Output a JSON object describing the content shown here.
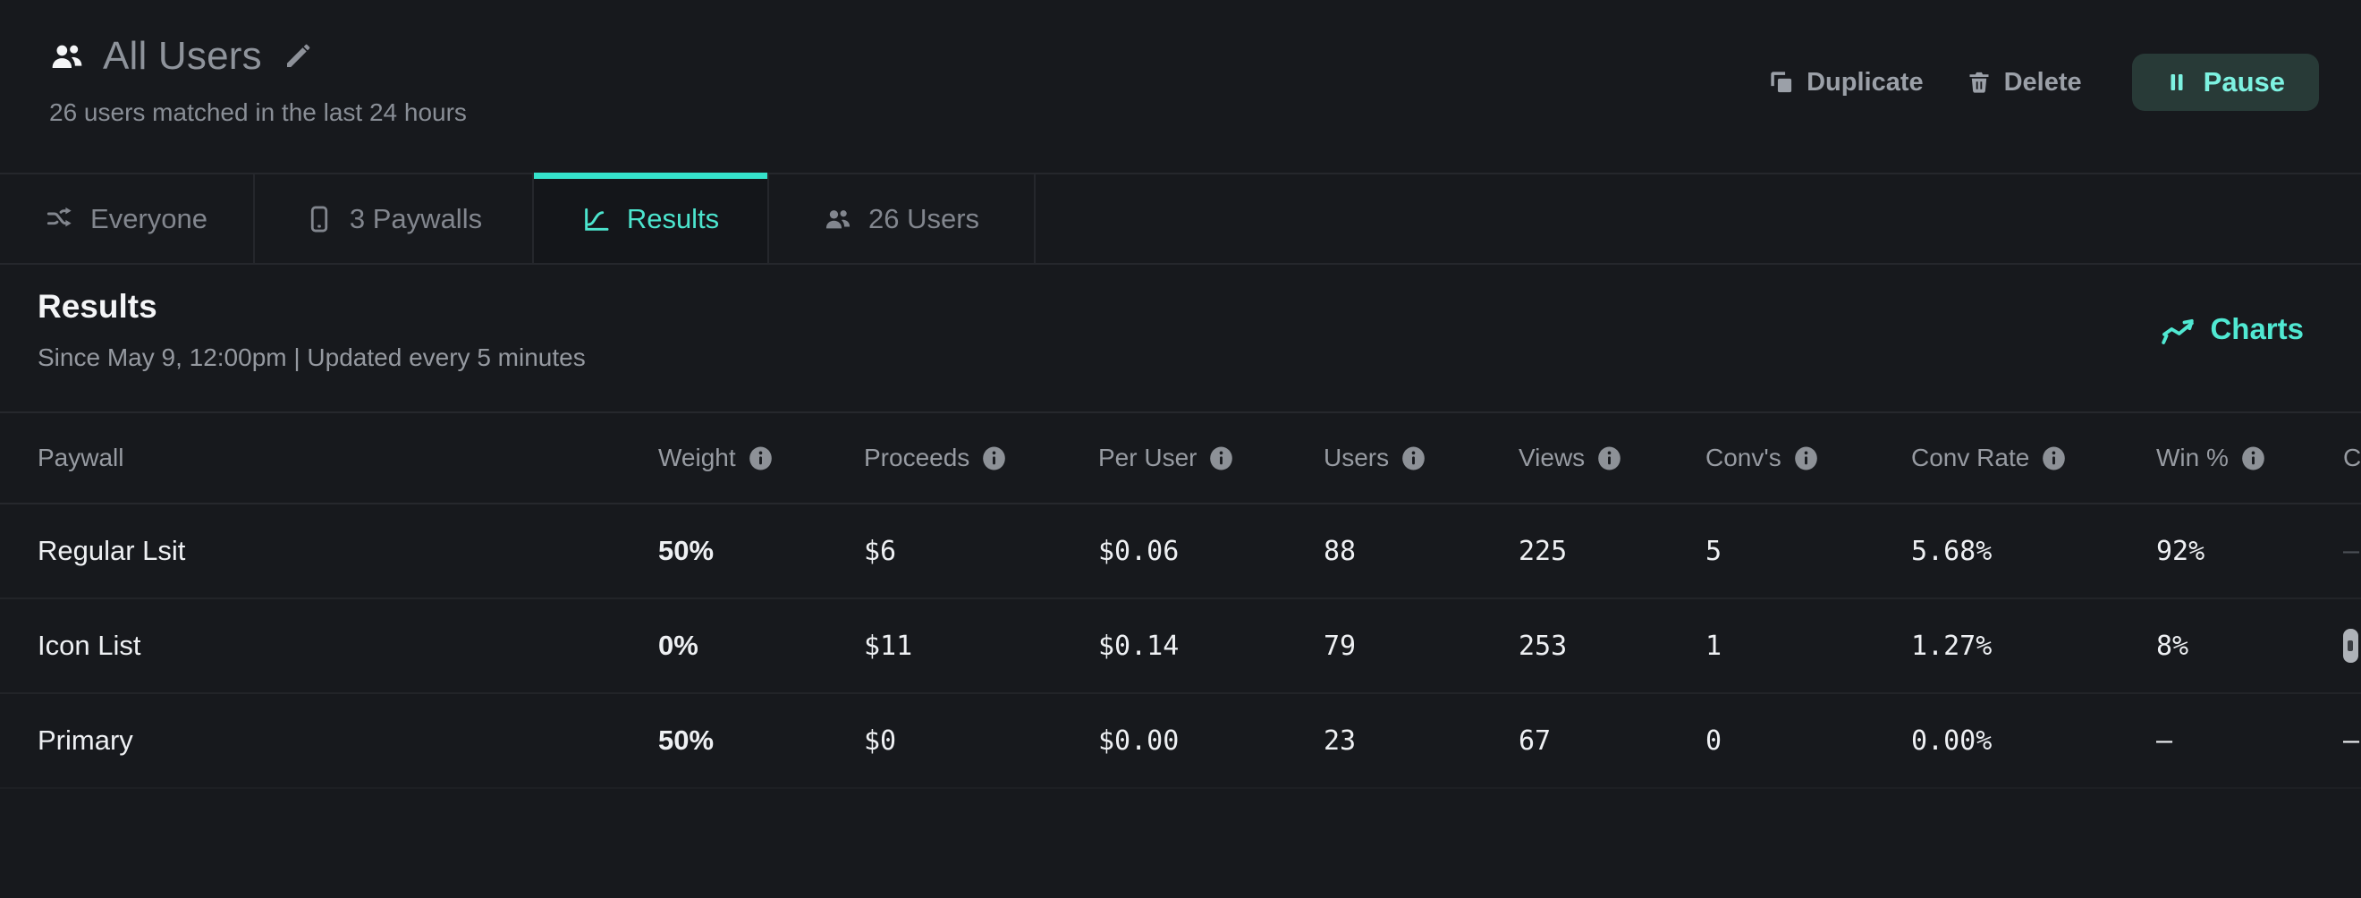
{
  "header": {
    "title": "All Users",
    "subtitle": "26 users matched in the last 24 hours",
    "actions": {
      "duplicate_label": "Duplicate",
      "delete_label": "Delete",
      "pause_label": "Pause"
    }
  },
  "tabs": [
    {
      "label": "Everyone",
      "icon": "split-arrows-icon",
      "active": false
    },
    {
      "label": "3 Paywalls",
      "icon": "phone-icon",
      "active": false
    },
    {
      "label": "Results",
      "icon": "chart-curve-icon",
      "active": true
    },
    {
      "label": "26 Users",
      "icon": "users-icon",
      "active": false
    }
  ],
  "results": {
    "title": "Results",
    "subtitle": "Since May 9, 12:00pm | Updated every 5 minutes",
    "charts_label": "Charts"
  },
  "table": {
    "columns": [
      {
        "id": "paywall",
        "label": "Paywall",
        "info": false,
        "type": "text"
      },
      {
        "id": "weight",
        "label": "Weight",
        "info": true,
        "type": "weight"
      },
      {
        "id": "proceeds",
        "label": "Proceeds",
        "info": true,
        "type": "mono"
      },
      {
        "id": "per_user",
        "label": "Per User",
        "info": true,
        "type": "mono"
      },
      {
        "id": "users",
        "label": "Users",
        "info": true,
        "type": "mono"
      },
      {
        "id": "views",
        "label": "Views",
        "info": true,
        "type": "mono"
      },
      {
        "id": "convs",
        "label": "Conv's",
        "info": true,
        "type": "mono"
      },
      {
        "id": "conv_rate",
        "label": "Conv Rate",
        "info": true,
        "type": "mono"
      },
      {
        "id": "win",
        "label": "Win %",
        "info": true,
        "type": "mono"
      },
      {
        "id": "confidence",
        "label": "C",
        "info": false,
        "type": "mono"
      }
    ],
    "rows": [
      {
        "paywall": "Regular Lsit",
        "weight": "50%",
        "proceeds": "$6",
        "per_user": "$0.06",
        "users": "88",
        "views": "225",
        "convs": "5",
        "conv_rate": "5.68%",
        "win": "92%",
        "confidence": "–",
        "confidence_variant": "dim"
      },
      {
        "paywall": "Icon List",
        "weight": "0%",
        "proceeds": "$11",
        "per_user": "$0.14",
        "users": "79",
        "views": "253",
        "convs": "1",
        "conv_rate": "1.27%",
        "win": "8%",
        "confidence": "",
        "confidence_variant": "badge"
      },
      {
        "paywall": "Primary",
        "weight": "50%",
        "proceeds": "$0",
        "per_user": "$0.00",
        "users": "23",
        "views": "67",
        "convs": "0",
        "conv_rate": "0.00%",
        "win": "–",
        "confidence": "–",
        "confidence_variant": "normal"
      }
    ]
  },
  "colors": {
    "background": "#17191d",
    "accent_teal": "#4ce5ce",
    "tab_indicator": "#35e2cb",
    "pause_button_bg": "#283a37",
    "pause_button_text": "#7df2e1",
    "border": "#25272c",
    "text_gray": "#8e939b",
    "text_white": "#eef0f3"
  }
}
